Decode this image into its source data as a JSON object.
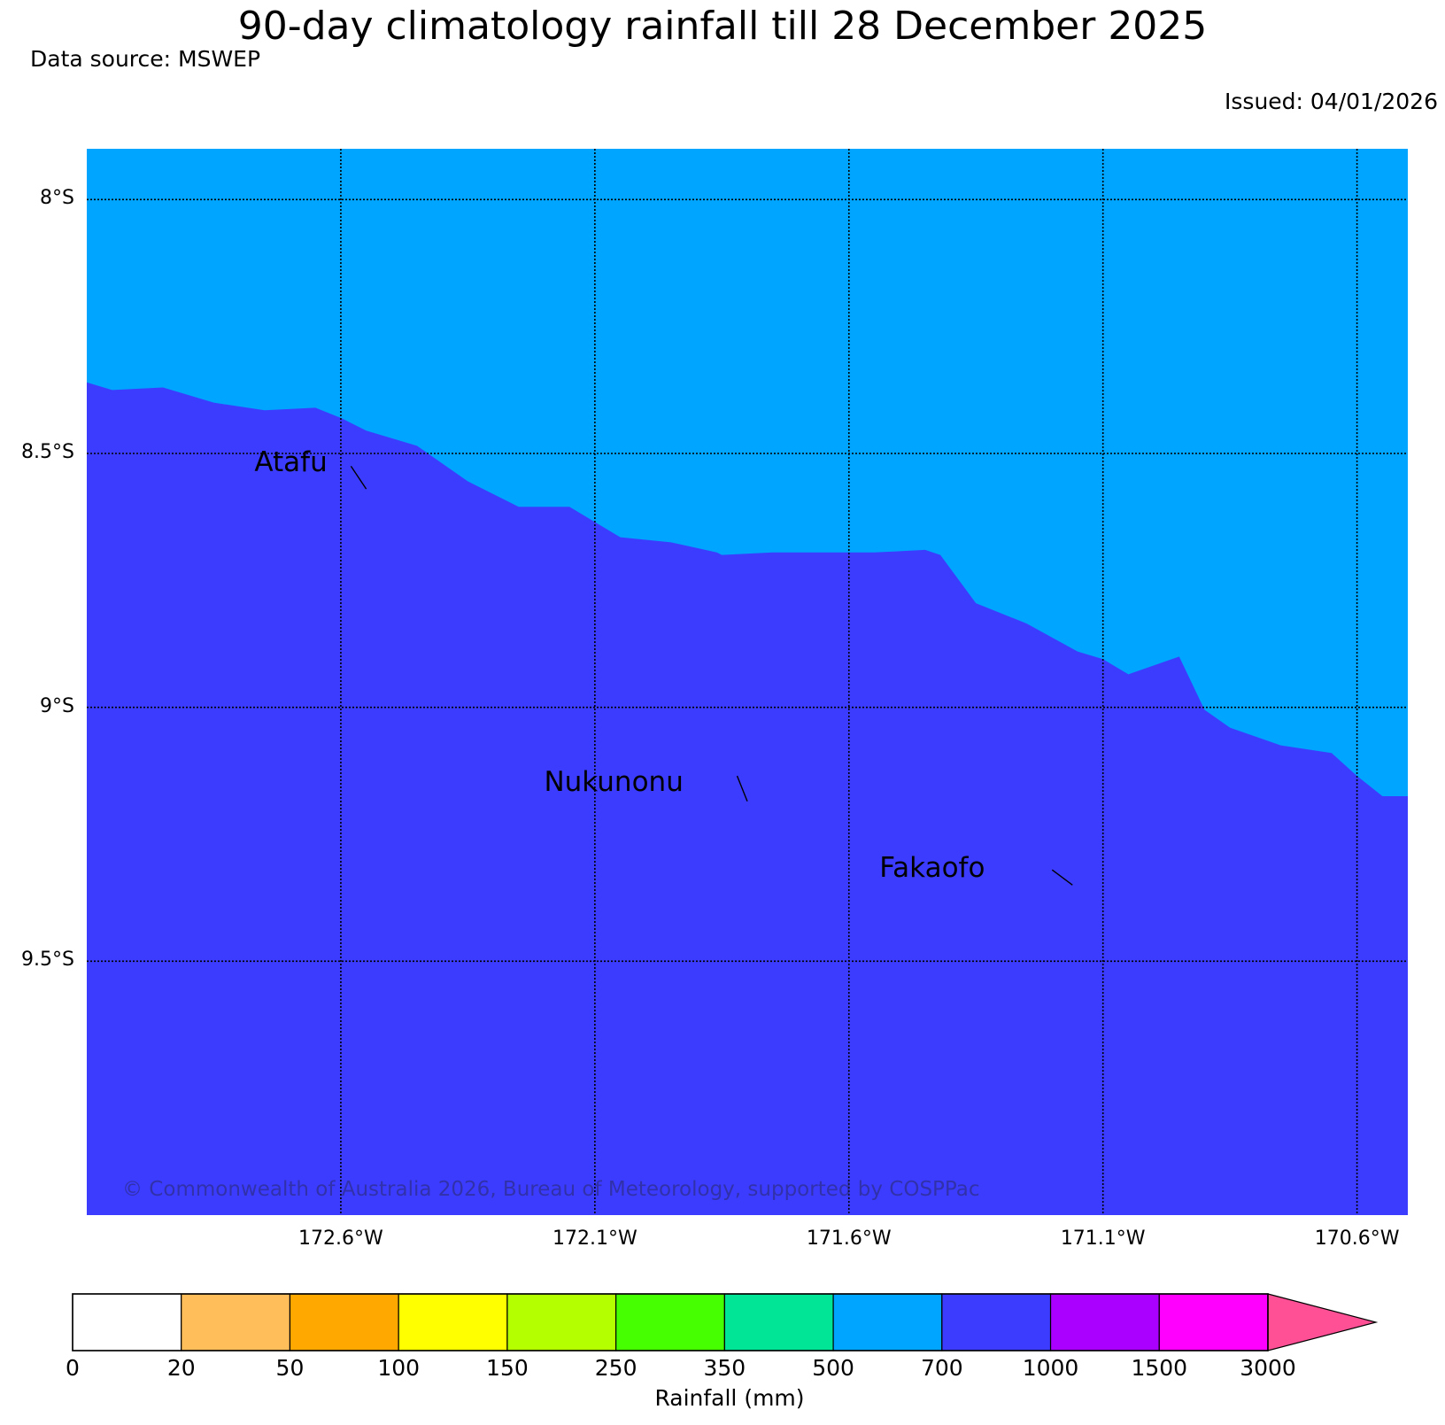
{
  "title": "90-day climatology rainfall till 28 December 2025",
  "data_source": "Data source: MSWEP",
  "issued": "Issued: 04/01/2026",
  "copyright": "© Commonwealth of Australia 2026, Bureau of Meteorology, supported by COSPPac",
  "map": {
    "extent": {
      "lon_west": -173.1,
      "lon_east": -170.5,
      "lat_north": -7.9,
      "lat_south": -10.0
    },
    "lat_ticks": [
      {
        "value": -8.0,
        "label": "8°S"
      },
      {
        "value": -8.5,
        "label": "8.5°S"
      },
      {
        "value": -9.0,
        "label": "9°S"
      },
      {
        "value": -9.5,
        "label": "9.5°S"
      }
    ],
    "lon_ticks": [
      {
        "value": -172.6,
        "label": "172.6°W"
      },
      {
        "value": -172.1,
        "label": "172.1°W"
      },
      {
        "value": -171.6,
        "label": "171.6°W"
      },
      {
        "value": -171.1,
        "label": "171.1°W"
      },
      {
        "value": -170.6,
        "label": "170.6°W"
      }
    ],
    "grid": true,
    "rainfall_zones": [
      {
        "range": "500–700 mm",
        "color": "#00a5ff",
        "extent": "north of boundary"
      },
      {
        "range": "700–1000 mm",
        "color": "#3c3cff",
        "extent": "south of boundary"
      }
    ],
    "zone_boundary": [
      [
        -173.1,
        -8.36
      ],
      [
        -173.05,
        -8.375
      ],
      [
        -172.95,
        -8.37
      ],
      [
        -172.85,
        -8.4
      ],
      [
        -172.75,
        -8.415
      ],
      [
        -172.65,
        -8.41
      ],
      [
        -172.6,
        -8.43
      ],
      [
        -172.55,
        -8.455
      ],
      [
        -172.45,
        -8.485
      ],
      [
        -172.35,
        -8.555
      ],
      [
        -172.25,
        -8.605
      ],
      [
        -172.15,
        -8.605
      ],
      [
        -172.05,
        -8.665
      ],
      [
        -171.95,
        -8.675
      ],
      [
        -171.86,
        -8.695
      ],
      [
        -171.85,
        -8.7
      ],
      [
        -171.75,
        -8.695
      ],
      [
        -171.55,
        -8.695
      ],
      [
        -171.45,
        -8.69
      ],
      [
        -171.42,
        -8.7
      ],
      [
        -171.35,
        -8.795
      ],
      [
        -171.25,
        -8.835
      ],
      [
        -171.15,
        -8.89
      ],
      [
        -171.1,
        -8.905
      ],
      [
        -171.05,
        -8.935
      ],
      [
        -170.95,
        -8.9
      ],
      [
        -170.9,
        -9.005
      ],
      [
        -170.85,
        -9.04
      ],
      [
        -170.75,
        -9.075
      ],
      [
        -170.65,
        -9.09
      ],
      [
        -170.6,
        -9.135
      ],
      [
        -170.55,
        -9.175
      ],
      [
        -170.5,
        -9.175
      ]
    ],
    "places": [
      {
        "name": "Atafu",
        "label_at": [
          -172.77,
          -8.545
        ],
        "pointer_from": [
          -172.58,
          -8.525
        ],
        "pointer_to": [
          -172.55,
          -8.57
        ]
      },
      {
        "name": "Nukunonu",
        "label_at": [
          -172.2,
          -9.175
        ],
        "pointer_from": [
          -171.82,
          -9.135
        ],
        "pointer_to": [
          -171.8,
          -9.185
        ]
      },
      {
        "name": "Fakaofo",
        "label_at": [
          -171.54,
          -9.345
        ],
        "pointer_from": [
          -171.2,
          -9.32
        ],
        "pointer_to": [
          -171.16,
          -9.35
        ]
      }
    ]
  },
  "colorbar": {
    "title": "Rainfall (mm)",
    "bins": [
      {
        "from": "0",
        "to": "20",
        "color": "#ffffff"
      },
      {
        "from": "20",
        "to": "50",
        "color": "#ffbe5a"
      },
      {
        "from": "50",
        "to": "100",
        "color": "#ffa800"
      },
      {
        "from": "100",
        "to": "150",
        "color": "#ffff00"
      },
      {
        "from": "150",
        "to": "250",
        "color": "#b4ff00"
      },
      {
        "from": "250",
        "to": "350",
        "color": "#46ff00"
      },
      {
        "from": "350",
        "to": "500",
        "color": "#00e696"
      },
      {
        "from": "500",
        "to": "700",
        "color": "#00a5ff"
      },
      {
        "from": "700",
        "to": "1000",
        "color": "#3c3cff"
      },
      {
        "from": "1000",
        "to": "1500",
        "color": "#aa00ff"
      },
      {
        "from": "1500",
        "to": "3000",
        "color": "#ff00ff"
      }
    ],
    "extend_color": "#ff5096",
    "tick_labels": [
      "0",
      "20",
      "50",
      "100",
      "150",
      "250",
      "350",
      "500",
      "700",
      "1000",
      "1500",
      "3000"
    ]
  }
}
